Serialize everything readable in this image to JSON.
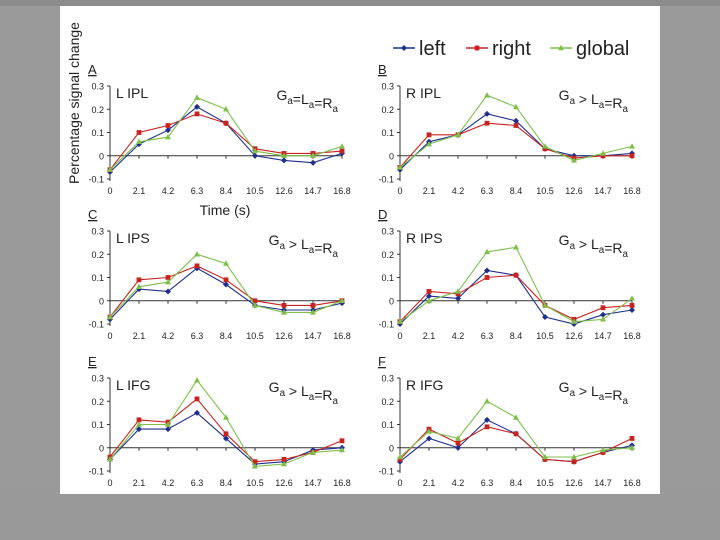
{
  "figure": {
    "ylabel": "Percentage signal change",
    "xlabel": "Time (s)",
    "legend": [
      {
        "name": "left",
        "color": "#1f2f8f",
        "marker": "diamond"
      },
      {
        "name": "right",
        "color": "#c8231f",
        "marker": "square"
      },
      {
        "name": "global",
        "color": "#7cc04a",
        "marker": "triangle"
      }
    ]
  },
  "chart_data": [
    {
      "type": "line",
      "panel": "A",
      "title": "L IPL",
      "annotation": "Ga=La=Ra",
      "x": [
        "0",
        "2.1",
        "4.2",
        "6.3",
        "8.4",
        "10.5",
        "12.6",
        "14.7",
        "16.8"
      ],
      "yticks": [
        "0.3",
        "0.2",
        "0.1",
        "0",
        "-0.1"
      ],
      "ylim": [
        -0.1,
        0.3
      ],
      "series": [
        {
          "name": "left",
          "values": [
            -0.07,
            0.05,
            0.11,
            0.21,
            0.14,
            0.0,
            -0.02,
            -0.03,
            0.01
          ]
        },
        {
          "name": "right",
          "values": [
            -0.06,
            0.1,
            0.13,
            0.18,
            0.14,
            0.03,
            0.01,
            0.01,
            0.02
          ]
        },
        {
          "name": "global",
          "values": [
            -0.06,
            0.06,
            0.08,
            0.25,
            0.2,
            0.02,
            0.0,
            0.0,
            0.04
          ]
        }
      ]
    },
    {
      "type": "line",
      "panel": "B",
      "title": "R IPL",
      "annotation": "Ga > La=Ra",
      "x": [
        "0",
        "2.1",
        "4.2",
        "6.3",
        "8.4",
        "10.5",
        "12.6",
        "14.7",
        "16.8"
      ],
      "yticks": [
        "0.3",
        "0.2",
        "0.1",
        "0",
        "-0.1"
      ],
      "ylim": [
        -0.1,
        0.3
      ],
      "series": [
        {
          "name": "left",
          "values": [
            -0.06,
            0.06,
            0.09,
            0.18,
            0.15,
            0.03,
            0.0,
            0.0,
            0.01
          ]
        },
        {
          "name": "right",
          "values": [
            -0.05,
            0.09,
            0.09,
            0.14,
            0.13,
            0.03,
            -0.01,
            0.0,
            0.0
          ]
        },
        {
          "name": "global",
          "values": [
            -0.05,
            0.05,
            0.09,
            0.26,
            0.21,
            0.04,
            -0.02,
            0.01,
            0.04
          ]
        }
      ]
    },
    {
      "type": "line",
      "panel": "C",
      "title": "L IPS",
      "annotation": "Ga > La=Ra",
      "x": [
        "0",
        "2.1",
        "4.2",
        "6.3",
        "8.4",
        "10.5",
        "12.6",
        "14.7",
        "16.8"
      ],
      "yticks": [
        "0.3",
        "0.2",
        "0.1",
        "0",
        "-0.1"
      ],
      "ylim": [
        -0.1,
        0.3
      ],
      "series": [
        {
          "name": "left",
          "values": [
            -0.08,
            0.05,
            0.04,
            0.14,
            0.07,
            -0.02,
            -0.04,
            -0.04,
            -0.01
          ]
        },
        {
          "name": "right",
          "values": [
            -0.07,
            0.09,
            0.1,
            0.15,
            0.09,
            0.0,
            -0.02,
            -0.02,
            0.0
          ]
        },
        {
          "name": "global",
          "values": [
            -0.07,
            0.06,
            0.08,
            0.2,
            0.16,
            -0.02,
            -0.05,
            -0.05,
            0.0
          ]
        }
      ]
    },
    {
      "type": "line",
      "panel": "D",
      "title": "R IPS",
      "annotation": "Ga > La=Ra",
      "x": [
        "0",
        "2.1",
        "4.2",
        "6.3",
        "8.4",
        "10.5",
        "12.6",
        "14.7",
        "16.8"
      ],
      "yticks": [
        "0.3",
        "0.2",
        "0.1",
        "0",
        "-0.1"
      ],
      "ylim": [
        -0.1,
        0.3
      ],
      "series": [
        {
          "name": "left",
          "values": [
            -0.1,
            0.02,
            0.01,
            0.13,
            0.11,
            -0.07,
            -0.1,
            -0.06,
            -0.04
          ]
        },
        {
          "name": "right",
          "values": [
            -0.09,
            0.04,
            0.03,
            0.1,
            0.11,
            -0.02,
            -0.08,
            -0.03,
            -0.02
          ]
        },
        {
          "name": "global",
          "values": [
            -0.09,
            0.0,
            0.04,
            0.21,
            0.23,
            -0.02,
            -0.09,
            -0.08,
            0.01
          ]
        }
      ]
    },
    {
      "type": "line",
      "panel": "E",
      "title": "L IFG",
      "annotation": "Ga > La=Ra",
      "x": [
        "0",
        "2.1",
        "4.2",
        "6.3",
        "8.4",
        "10.5",
        "12.6",
        "14.7",
        "16.8"
      ],
      "yticks": [
        "0.3",
        "0.2",
        "0.1",
        "0",
        "-0.1"
      ],
      "ylim": [
        -0.1,
        0.3
      ],
      "series": [
        {
          "name": "left",
          "values": [
            -0.05,
            0.08,
            0.08,
            0.15,
            0.04,
            -0.07,
            -0.06,
            -0.01,
            0.0
          ]
        },
        {
          "name": "right",
          "values": [
            -0.04,
            0.12,
            0.11,
            0.21,
            0.06,
            -0.06,
            -0.05,
            -0.02,
            0.03
          ]
        },
        {
          "name": "global",
          "values": [
            -0.05,
            0.1,
            0.1,
            0.29,
            0.13,
            -0.08,
            -0.07,
            -0.02,
            -0.01
          ]
        }
      ]
    },
    {
      "type": "line",
      "panel": "F",
      "title": "R IFG",
      "annotation": "Ga > La=Ra",
      "x": [
        "0",
        "2.1",
        "4.2",
        "6.3",
        "8.4",
        "10.5",
        "12.6",
        "14.7",
        "16.8"
      ],
      "yticks": [
        "0.3",
        "0.2",
        "0.1",
        "0",
        "-0.1"
      ],
      "ylim": [
        -0.1,
        0.3
      ],
      "series": [
        {
          "name": "left",
          "values": [
            -0.06,
            0.04,
            0.0,
            0.12,
            0.06,
            -0.05,
            -0.06,
            -0.02,
            0.01
          ]
        },
        {
          "name": "right",
          "values": [
            -0.05,
            0.08,
            0.02,
            0.09,
            0.06,
            -0.05,
            -0.06,
            -0.02,
            0.04
          ]
        },
        {
          "name": "global",
          "values": [
            -0.04,
            0.07,
            0.04,
            0.2,
            0.13,
            -0.04,
            -0.04,
            -0.01,
            0.0
          ]
        }
      ]
    }
  ]
}
